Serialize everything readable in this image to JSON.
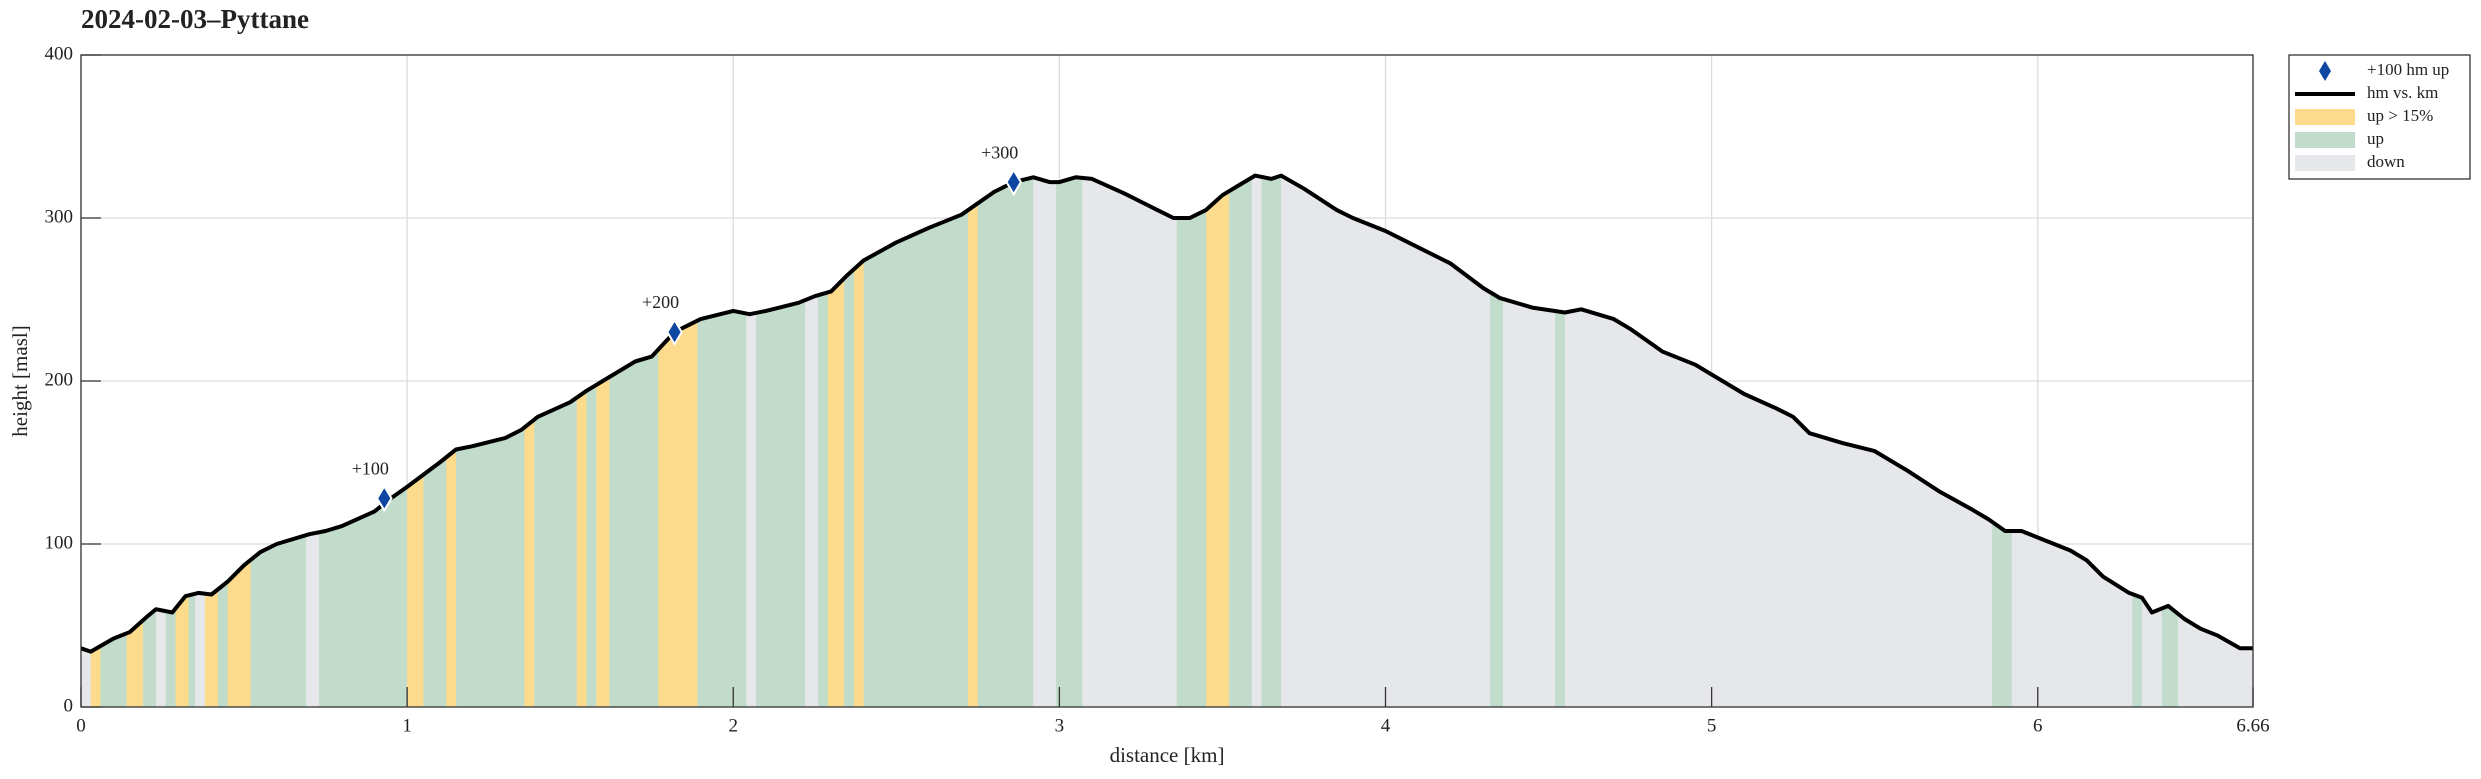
{
  "chart_data": {
    "type": "line",
    "title": "2024-02-03–Pyttane",
    "xlabel": "distance [km]",
    "ylabel": "height [masl]",
    "xlim": [
      0,
      6.66
    ],
    "ylim": [
      0,
      400
    ],
    "xticks": [
      0,
      1,
      2,
      3,
      4,
      5,
      6,
      6.66
    ],
    "yticks": [
      0,
      100,
      200,
      300,
      400
    ],
    "grid": true,
    "legend": "upper right outside",
    "profile": {
      "name": "hm vs. km",
      "color": "#000000",
      "x": [
        0,
        0.03,
        0.1,
        0.15,
        0.2,
        0.23,
        0.28,
        0.32,
        0.36,
        0.4,
        0.45,
        0.5,
        0.55,
        0.6,
        0.7,
        0.75,
        0.8,
        0.9,
        0.95,
        1.0,
        1.1,
        1.15,
        1.2,
        1.3,
        1.35,
        1.4,
        1.5,
        1.55,
        1.6,
        1.7,
        1.75,
        1.82,
        1.9,
        2.0,
        2.05,
        2.1,
        2.2,
        2.25,
        2.3,
        2.35,
        2.4,
        2.5,
        2.6,
        2.7,
        2.8,
        2.86,
        2.92,
        2.97,
        3.0,
        3.05,
        3.1,
        3.2,
        3.3,
        3.35,
        3.4,
        3.45,
        3.5,
        3.55,
        3.6,
        3.65,
        3.68,
        3.75,
        3.85,
        3.9,
        4.0,
        4.1,
        4.2,
        4.3,
        4.35,
        4.45,
        4.55,
        4.6,
        4.7,
        4.75,
        4.85,
        4.95,
        5.0,
        5.1,
        5.2,
        5.25,
        5.3,
        5.4,
        5.5,
        5.6,
        5.7,
        5.8,
        5.85,
        5.9,
        5.95,
        6.0,
        6.1,
        6.15,
        6.2,
        6.28,
        6.32,
        6.35,
        6.4,
        6.45,
        6.5,
        6.55,
        6.62,
        6.66
      ],
      "values": [
        36,
        34,
        42,
        46,
        55,
        60,
        58,
        68,
        70,
        69,
        77,
        87,
        95,
        100,
        106,
        108,
        111,
        120,
        128,
        135,
        150,
        158,
        160,
        165,
        170,
        178,
        187,
        194,
        200,
        212,
        215,
        230,
        238,
        243,
        241,
        243,
        248,
        252,
        255,
        265,
        274,
        285,
        294,
        302,
        316,
        322,
        325,
        322,
        322,
        325,
        324,
        315,
        305,
        300,
        300,
        305,
        314,
        320,
        326,
        324,
        326,
        318,
        305,
        300,
        292,
        282,
        272,
        257,
        251,
        245,
        242,
        244,
        238,
        232,
        218,
        210,
        204,
        192,
        183,
        178,
        168,
        162,
        157,
        145,
        132,
        121,
        115,
        108,
        108,
        104,
        96,
        90,
        80,
        70,
        67,
        58,
        62,
        54,
        48,
        44,
        36,
        36
      ]
    },
    "markers": {
      "name": "+100 hm up",
      "color": "#0d47a1",
      "x": [
        0.93,
        1.82,
        2.86
      ],
      "values": [
        128,
        230,
        322
      ],
      "labels": [
        "+100",
        "+200",
        "+300"
      ]
    },
    "band_kinds": [
      {
        "name": "up > 15%",
        "color": "#fddb8c"
      },
      {
        "name": "up",
        "color": "#c1dccb"
      },
      {
        "name": "down",
        "color": "#e6e7ea"
      }
    ],
    "bands": {
      "edges": [
        0,
        0.03,
        0.06,
        0.14,
        0.19,
        0.23,
        0.26,
        0.29,
        0.33,
        0.35,
        0.38,
        0.42,
        0.45,
        0.52,
        0.69,
        0.73,
        1.0,
        1.05,
        1.12,
        1.15,
        1.36,
        1.39,
        1.52,
        1.55,
        1.58,
        1.62,
        1.77,
        1.89,
        2.04,
        2.07,
        2.22,
        2.26,
        2.29,
        2.34,
        2.37,
        2.4,
        2.72,
        2.75,
        2.92,
        2.99,
        3.07,
        3.36,
        3.45,
        3.52,
        3.59,
        3.62,
        3.68,
        4.32,
        4.36,
        4.52,
        4.55,
        5.86,
        5.92,
        6.29,
        6.32,
        6.38,
        6.43,
        6.66
      ],
      "kind": [
        "down",
        "up > 15%",
        "up",
        "up > 15%",
        "up",
        "down",
        "up",
        "up > 15%",
        "up",
        "down",
        "up > 15%",
        "up",
        "up > 15%",
        "up",
        "down",
        "up",
        "up > 15%",
        "up",
        "up > 15%",
        "up",
        "up > 15%",
        "up",
        "up > 15%",
        "up",
        "up > 15%",
        "up",
        "up > 15%",
        "up",
        "down",
        "up",
        "down",
        "up",
        "up > 15%",
        "up",
        "up > 15%",
        "up",
        "up > 15%",
        "up",
        "down",
        "up",
        "down",
        "up",
        "up > 15%",
        "up",
        "down",
        "up",
        "down",
        "up",
        "down",
        "up",
        "down",
        "up",
        "down",
        "up",
        "down",
        "up",
        "down"
      ]
    }
  }
}
